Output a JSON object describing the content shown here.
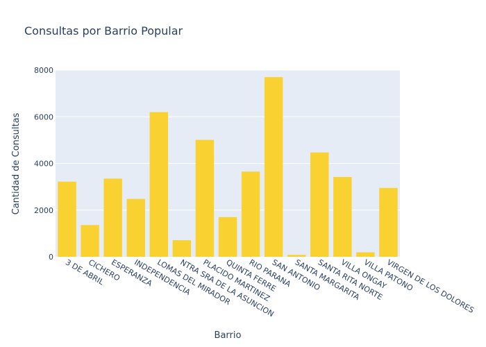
{
  "chart_data": {
    "type": "bar",
    "title": "Consultas por Barrio Popular",
    "xlabel": "Barrio",
    "ylabel": "Cantidad de Consultas",
    "categories": [
      "3 DE ABRIL",
      "CICHERO",
      "ESPERANZA",
      "INDEPENDENCIA",
      "LOMAS DEL MIRADOR",
      "NTRA SRA DE LA ASUNCION",
      "PLACIDO MARTINEZ",
      "QUINTA FERRE",
      "RIO PARANA",
      "SAN ANTONIO",
      "SANTA MARGARITA",
      "SANTA RITA NORTE",
      "VILLA ONGAY",
      "VILLA PATONO",
      "VIRGEN DE LOS DOLORES"
    ],
    "values": [
      3220,
      1360,
      3350,
      2480,
      6200,
      710,
      5010,
      1700,
      3650,
      7700,
      80,
      4470,
      3420,
      190,
      2950
    ],
    "ylim": [
      0,
      8000
    ],
    "yticks": [
      0,
      2000,
      4000,
      6000,
      8000
    ],
    "ytick_labels": [
      "0",
      "2000",
      "4000",
      "6000",
      "8000"
    ],
    "grid": true,
    "colors": {
      "bar": "#f9d131",
      "plot_background": "#e5ecf6",
      "grid": "#ffffff",
      "text": "#2a3f5f"
    }
  }
}
